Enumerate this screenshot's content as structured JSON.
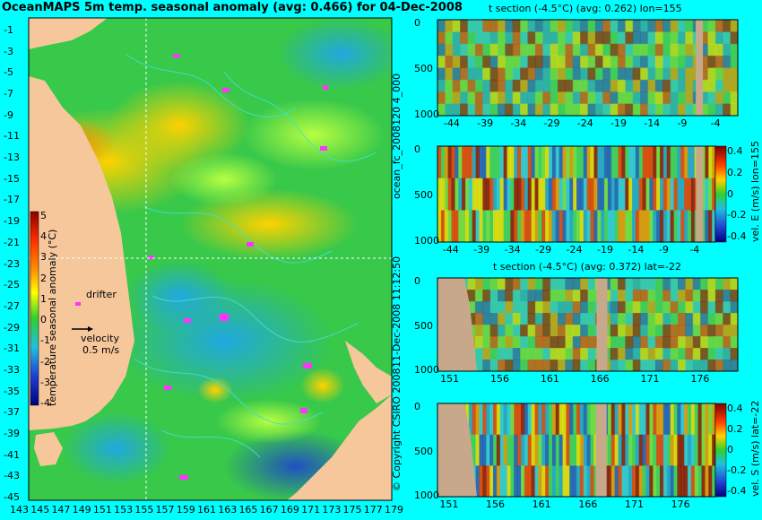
{
  "main_title": "OceanMAPS 5m temp. seasonal anomaly (avg: 0.466) for 04-Dec-2008",
  "side_labels": {
    "file": "ocean_fc_2008120 4_000",
    "timestamp": "11-Dec-2008 11:12:50",
    "copyright": "© Copyright CSIRO 2008"
  },
  "map": {
    "lat_ticks": [
      "-1",
      "-3",
      "-5",
      "-7",
      "-9",
      "-11",
      "-13",
      "-15",
      "-17",
      "-19",
      "-21",
      "-23",
      "-25",
      "-27",
      "-29",
      "-31",
      "-33",
      "-35",
      "-37",
      "-39",
      "-41",
      "-43",
      "-45"
    ],
    "lon_ticks": [
      "143",
      "145",
      "147",
      "149",
      "151",
      "153",
      "155",
      "157",
      "159",
      "161",
      "163",
      "165",
      "167",
      "169",
      "171",
      "173",
      "175",
      "177",
      "179"
    ],
    "colorbar_label": "temperature seasonal anomaly (°C)",
    "colorbar_ticks": [
      "5",
      "4",
      "3",
      "2",
      "1",
      "0",
      "-1",
      "-2",
      "-3",
      "-4"
    ],
    "drifter_label": "drifter",
    "velocity_label": "velocity",
    "velocity_value": "0.5 m/s"
  },
  "panels": [
    {
      "title": "t section (-4.5°C) (avg: 0.262) lon=155",
      "y_ticks": [
        "0",
        "500",
        "1000"
      ],
      "x_ticks": [
        "-44",
        "-39",
        "-34",
        "-29",
        "-24",
        "-19",
        "-14",
        "-9",
        "-4"
      ],
      "colorbar_label": "",
      "colorbar_ticks": []
    },
    {
      "title": "",
      "y_ticks": [
        "0",
        "500",
        "1000"
      ],
      "x_ticks": [
        "-44",
        "-39",
        "-34",
        "-29",
        "-24",
        "-19",
        "-14",
        "-9",
        "-4"
      ],
      "colorbar_label": "vel. E (m/s) lon=155",
      "colorbar_ticks": [
        "0.4",
        "0.2",
        "0",
        "-0.2",
        "-0.4"
      ]
    },
    {
      "title": "t section (-4.5°C) (avg: 0.372) lat=-22",
      "y_ticks": [
        "0",
        "500",
        "1000"
      ],
      "x_ticks": [
        "151",
        "156",
        "161",
        "166",
        "171",
        "176"
      ],
      "colorbar_label": "",
      "colorbar_ticks": []
    },
    {
      "title": "",
      "y_ticks": [
        "0",
        "500",
        "1000"
      ],
      "x_ticks": [
        "151",
        "156",
        "161",
        "166",
        "171",
        "176"
      ],
      "colorbar_label": "vel. S (m/s) lat=-22",
      "colorbar_ticks": [
        "0.4",
        "0.2",
        "0",
        "-0.2",
        "-0.4"
      ]
    }
  ],
  "chart_data": [
    {
      "type": "heatmap",
      "title": "OceanMAPS 5m temp. seasonal anomaly (avg: 0.466) for 04-Dec-2008",
      "xlabel": "",
      "ylabel": "",
      "xlim": [
        143,
        180
      ],
      "ylim": [
        -45,
        0
      ],
      "colorbar": {
        "label": "temperature seasonal anomaly (°C)",
        "range": [
          -4,
          5
        ]
      }
    },
    {
      "type": "heatmap",
      "title": "t section (-4.5°C) (avg: 0.262) lon=155",
      "xlim": [
        -46,
        -1
      ],
      "ylim": [
        1050,
        0
      ]
    },
    {
      "type": "heatmap",
      "title": "",
      "xlim": [
        -46,
        -1
      ],
      "ylim": [
        1050,
        0
      ],
      "colorbar": {
        "label": "vel. E (m/s) lon=155",
        "range": [
          -0.4,
          0.4
        ]
      }
    },
    {
      "type": "heatmap",
      "title": "t section (-4.5°C) (avg: 0.372) lat=-22",
      "xlim": [
        150,
        180
      ],
      "ylim": [
        1050,
        0
      ]
    },
    {
      "type": "heatmap",
      "title": "",
      "xlim": [
        150,
        180
      ],
      "ylim": [
        1050,
        0
      ],
      "colorbar": {
        "label": "vel. S (m/s) lat=-22",
        "range": [
          -0.4,
          0.4
        ]
      }
    }
  ],
  "colors": {
    "background": "#00ffff",
    "land": "#f5c79a",
    "section_land": "#c8a88a",
    "contour": "#40e0d0",
    "drifter": "#ff33ff"
  }
}
